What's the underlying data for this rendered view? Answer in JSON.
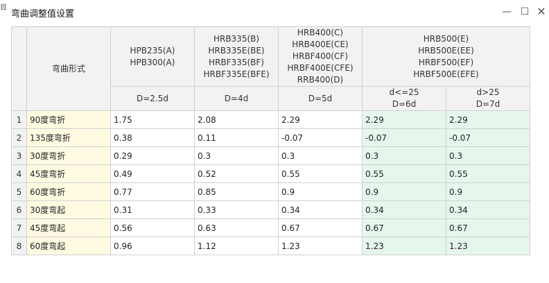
{
  "window": {
    "title": "弯曲调整值设置",
    "edge_glyph": "目"
  },
  "controls": {
    "minimize_glyph": "—",
    "maximize_glyph": "☐",
    "close_glyph": "✕"
  },
  "table": {
    "bend_type_header": "弯曲形式",
    "groups": [
      {
        "steel_lines": "HPB235(A)\nHPB300(A)",
        "diameter": "D=2.5d"
      },
      {
        "steel_lines": "HRB335(B)\nHRB335E(BE)\nHRBF335(BF)\nHRBF335E(BFE)",
        "diameter": "D=4d"
      },
      {
        "steel_lines": "HRB400(C)\nHRB400E(CE)\nHRBF400(CF)\nHRBF400E(CFE)\nRRB400(D)",
        "diameter": "D=5d"
      },
      {
        "steel_lines": "HRB500(E)\nHRB500E(EE)\nHRBF500(EF)\nHRBF500E(EFE)"
      }
    ],
    "sub_headers": [
      "d<=25\nD=6d",
      "d>25\nD=7d"
    ],
    "rows": [
      {
        "num": "1",
        "name": "90度弯折",
        "values": [
          "1.75",
          "2.08",
          "2.29",
          "2.29",
          "2.29"
        ]
      },
      {
        "num": "2",
        "name": "135度弯折",
        "values": [
          "0.38",
          "0.11",
          "-0.07",
          "-0.07",
          "-0.07"
        ]
      },
      {
        "num": "3",
        "name": "30度弯折",
        "values": [
          "0.29",
          "0.3",
          "0.3",
          "0.3",
          "0.3"
        ]
      },
      {
        "num": "4",
        "name": "45度弯折",
        "values": [
          "0.49",
          "0.52",
          "0.55",
          "0.55",
          "0.55"
        ]
      },
      {
        "num": "5",
        "name": "60度弯折",
        "values": [
          "0.77",
          "0.85",
          "0.9",
          "0.9",
          "0.9"
        ]
      },
      {
        "num": "6",
        "name": "30度弯起",
        "values": [
          "0.31",
          "0.33",
          "0.34",
          "0.34",
          "0.34"
        ]
      },
      {
        "num": "7",
        "name": "45度弯起",
        "values": [
          "0.56",
          "0.63",
          "0.67",
          "0.67",
          "0.67"
        ]
      },
      {
        "num": "8",
        "name": "60度弯起",
        "values": [
          "0.96",
          "1.12",
          "1.23",
          "1.23",
          "1.23"
        ]
      }
    ]
  },
  "colors": {
    "row_name_bg": "#fffbe2",
    "hrb500_bg": "#e6f6ec",
    "header_bg": "#f2f2f2",
    "grid_line": "#d0d0d0"
  }
}
